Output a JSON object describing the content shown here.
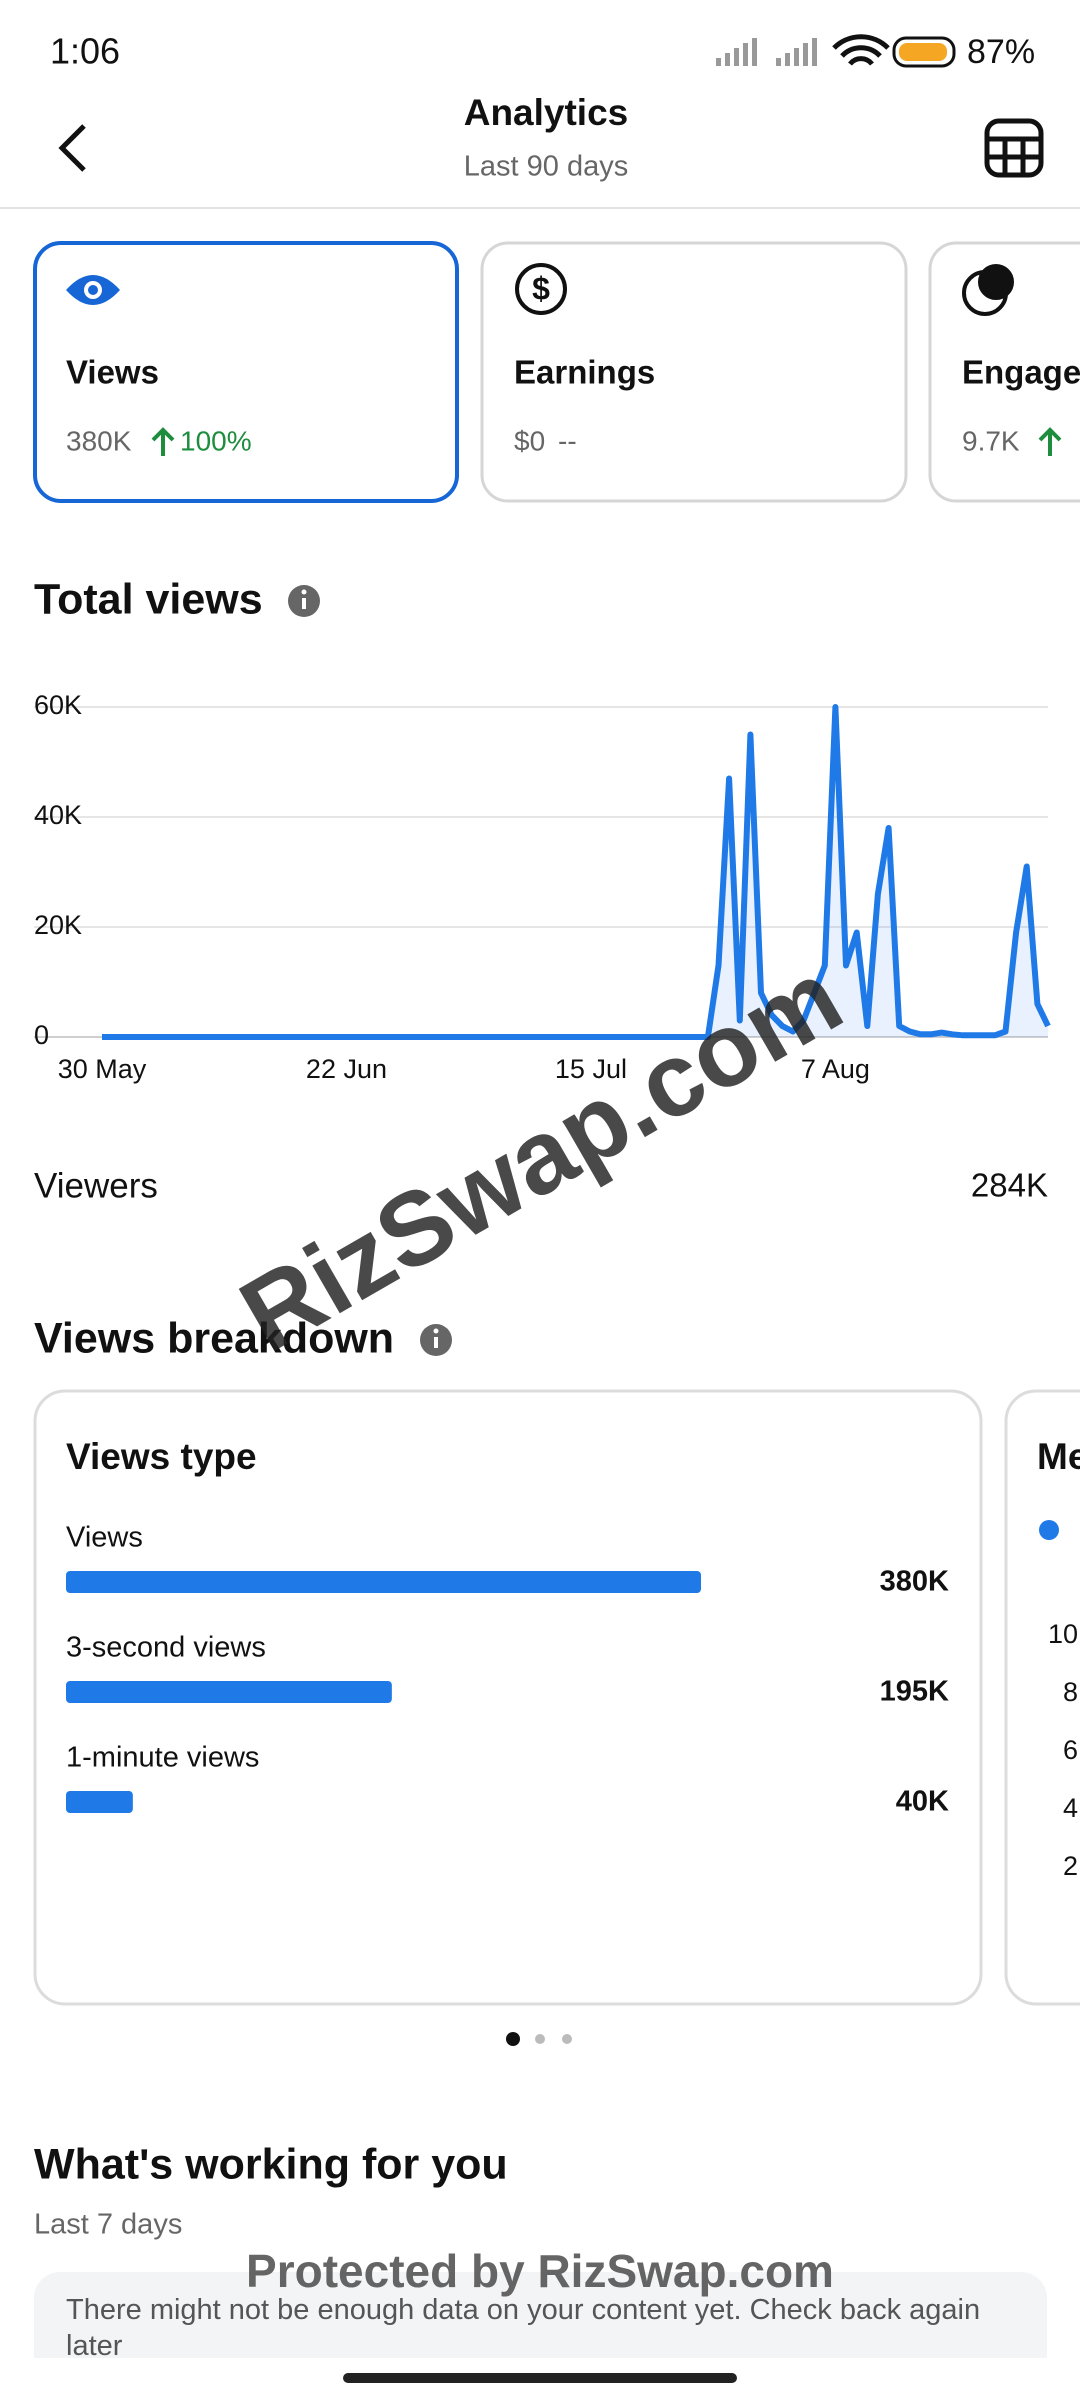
{
  "status_bar": {
    "time": "1:06",
    "battery": "87%"
  },
  "header": {
    "title": "Analytics",
    "subtitle": "Last 90 days"
  },
  "metric_cards": [
    {
      "label": "Views",
      "value": "380K",
      "change": "100%"
    },
    {
      "label": "Earnings",
      "value": "$0",
      "change": "--"
    },
    {
      "label": "Engage",
      "value": "9.7K"
    }
  ],
  "total_views": {
    "title": "Total views",
    "chart_data": {
      "type": "line",
      "color": "#1f7ae8",
      "categories": [
        "30 May",
        null,
        null,
        null,
        null,
        null,
        null,
        null,
        null,
        null,
        null,
        null,
        null,
        null,
        null,
        null,
        null,
        null,
        null,
        null,
        null,
        null,
        null,
        "22 Jun",
        null,
        null,
        null,
        null,
        null,
        null,
        null,
        null,
        null,
        null,
        null,
        null,
        null,
        null,
        null,
        null,
        null,
        null,
        null,
        null,
        null,
        null,
        "15 Jul",
        null,
        null,
        null,
        null,
        null,
        null,
        null,
        null,
        null,
        null,
        null,
        null,
        null,
        null,
        null,
        null,
        null,
        null,
        null,
        null,
        null,
        null,
        "7 Aug",
        null,
        null,
        null,
        null,
        null,
        null,
        null,
        null,
        null,
        null,
        null,
        null,
        null,
        null,
        null,
        null,
        null,
        null,
        null,
        null
      ],
      "values": [
        0,
        0,
        0,
        0,
        0,
        0,
        0,
        0,
        0,
        0,
        0,
        0,
        0,
        0,
        0,
        0,
        0,
        0,
        0,
        0,
        0,
        0,
        0,
        0,
        0,
        0,
        0,
        0,
        0,
        0,
        0,
        0,
        0,
        0,
        0,
        0,
        0,
        0,
        0,
        0,
        0,
        0,
        0,
        0,
        0,
        0,
        0,
        0,
        0,
        0,
        0,
        0,
        0,
        0,
        0,
        0,
        0,
        0,
        13000,
        47000,
        3000,
        55000,
        8000,
        4000,
        2000,
        1000,
        3000,
        8000,
        13000,
        60000,
        13000,
        19000,
        2000,
        26000,
        38000,
        2000,
        1000,
        500,
        500,
        800,
        500,
        300,
        300,
        300,
        300,
        1000,
        19000,
        31000,
        6000,
        2000
      ],
      "ylim": [
        0,
        60000
      ],
      "yticks": [
        0,
        {
          "value": 20000,
          "label": "20K"
        },
        {
          "value": 40000,
          "label": "40K"
        },
        {
          "value": 60000,
          "label": "60K"
        }
      ],
      "grid": true
    }
  },
  "viewers": {
    "label": "Viewers",
    "value": "284K"
  },
  "views_breakdown": {
    "title": "Views breakdown",
    "cards": [
      {
        "title": "Views type",
        "chart_data": {
          "type": "hbar",
          "color": "#1f7ae8",
          "categories": [
            "Views",
            "3-second views",
            "1-minute views"
          ],
          "values": [
            380000,
            195000,
            40000
          ],
          "value_labels": [
            "380K",
            "195K",
            "40K"
          ]
        }
      },
      {
        "title": "Me",
        "ticks": [
          "10",
          "8",
          "6",
          "4",
          "2"
        ]
      }
    ]
  },
  "whats_working": {
    "title": "What's working for you",
    "subtitle": "Last 7 days",
    "message": "There might not be enough data on your content yet. Check back again later"
  },
  "watermarks": [
    "RizSwap.com",
    "Protected by RizSwap.com"
  ]
}
